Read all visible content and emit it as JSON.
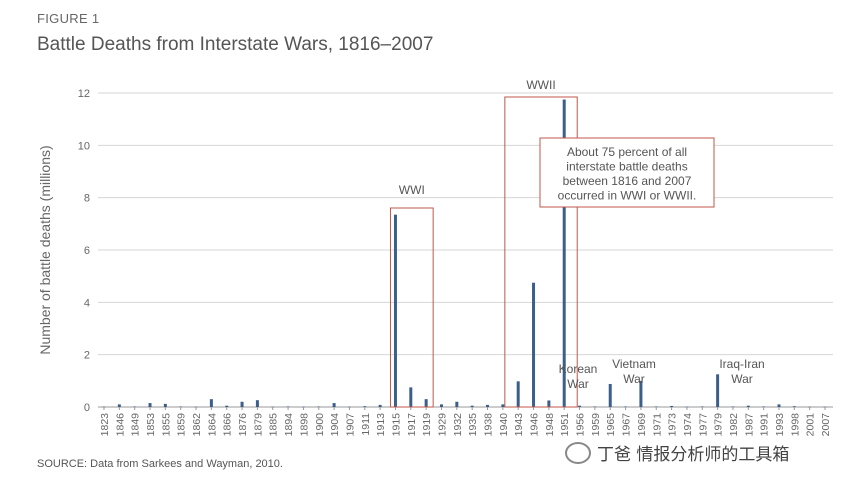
{
  "figure_label": "FIGURE 1",
  "title": "Battle Deaths from Interstate Wars, 1816–2007",
  "source": "SOURCE: Data from Sarkees and Wayman, 2010.",
  "watermark": "丁爸 情报分析师的工具箱",
  "chart_data": {
    "type": "bar",
    "ylabel": "Number of battle deaths (millions)",
    "ylim": [
      0,
      12
    ],
    "yticks": [
      0,
      2,
      4,
      6,
      8,
      10,
      12
    ],
    "grid": true,
    "bar_color": "#3b5f8a",
    "box_color": "#c0574a",
    "xtick_labels": [
      "1823",
      "1846",
      "1849",
      "1853",
      "1855",
      "1859",
      "1862",
      "1864",
      "1866",
      "1876",
      "1879",
      "1885",
      "1894",
      "1898",
      "1900",
      "1904",
      "1907",
      "1911",
      "1913",
      "1915",
      "1917",
      "1919",
      "1929",
      "1932",
      "1935",
      "1938",
      "1940",
      "1943",
      "1946",
      "1948",
      "1951",
      "1956",
      "1959",
      "1965",
      "1967",
      "1969",
      "1971",
      "1973",
      "1974",
      "1977",
      "1979",
      "1982",
      "1987",
      "1991",
      "1993",
      "1998",
      "2001",
      "2007"
    ],
    "bars": [
      {
        "label": "1823",
        "value": 0.01
      },
      {
        "label": "1846",
        "value": 0.1
      },
      {
        "label": "1849",
        "value": 0.02
      },
      {
        "label": "1853",
        "value": 0.15
      },
      {
        "label": "1855",
        "value": 0.12
      },
      {
        "label": "1859",
        "value": 0.02
      },
      {
        "label": "1862",
        "value": 0.01
      },
      {
        "label": "1864",
        "value": 0.3
      },
      {
        "label": "1866",
        "value": 0.05
      },
      {
        "label": "1876",
        "value": 0.2
      },
      {
        "label": "1879",
        "value": 0.26
      },
      {
        "label": "1885",
        "value": 0.01
      },
      {
        "label": "1894",
        "value": 0.02
      },
      {
        "label": "1898",
        "value": 0.01
      },
      {
        "label": "1900",
        "value": 0.02
      },
      {
        "label": "1904",
        "value": 0.15
      },
      {
        "label": "1907",
        "value": 0.01
      },
      {
        "label": "1911",
        "value": 0.03
      },
      {
        "label": "1913",
        "value": 0.08
      },
      {
        "label": "1915",
        "value": 7.35
      },
      {
        "label": "1917",
        "value": 0.75
      },
      {
        "label": "1919",
        "value": 0.3
      },
      {
        "label": "1929",
        "value": 0.1
      },
      {
        "label": "1932",
        "value": 0.2
      },
      {
        "label": "1935",
        "value": 0.05
      },
      {
        "label": "1938",
        "value": 0.08
      },
      {
        "label": "1940",
        "value": 0.1
      },
      {
        "label": "1943",
        "value": 0.98
      },
      {
        "label": "1946",
        "value": 4.75
      },
      {
        "label": "1948",
        "value": 0.25
      },
      {
        "label": "1951",
        "value": 11.75
      },
      {
        "label": "1956",
        "value": 0.05
      },
      {
        "label": "1959",
        "value": 0.02
      },
      {
        "label": "1965",
        "value": 0.88
      },
      {
        "label": "1967",
        "value": 0.02
      },
      {
        "label": "1969",
        "value": 1.0
      },
      {
        "label": "1971",
        "value": 0.02
      },
      {
        "label": "1973",
        "value": 0.04
      },
      {
        "label": "1974",
        "value": 0.01
      },
      {
        "label": "1977",
        "value": 0.02
      },
      {
        "label": "1979",
        "value": 1.25
      },
      {
        "label": "1982",
        "value": 0.02
      },
      {
        "label": "1987",
        "value": 0.05
      },
      {
        "label": "1991",
        "value": 0.02
      },
      {
        "label": "1993",
        "value": 0.1
      },
      {
        "label": "1998",
        "value": 0.03
      },
      {
        "label": "2001",
        "value": 0.01
      },
      {
        "label": "2007",
        "value": 0.01
      }
    ],
    "annotations": [
      {
        "name": "wwi",
        "text": "WWI"
      },
      {
        "name": "wwii",
        "text": "WWII"
      },
      {
        "name": "korean",
        "lines": [
          "Korean",
          "War"
        ]
      },
      {
        "name": "vietnam",
        "lines": [
          "Vietnam",
          "War"
        ]
      },
      {
        "name": "iraq-iran",
        "lines": [
          "Iraq-Iran",
          "War"
        ]
      },
      {
        "name": "callout",
        "lines": [
          "About 75 percent of all",
          "interstate battle deaths",
          "between 1816 and 2007",
          "occurred in WWI or WWII."
        ]
      }
    ]
  }
}
